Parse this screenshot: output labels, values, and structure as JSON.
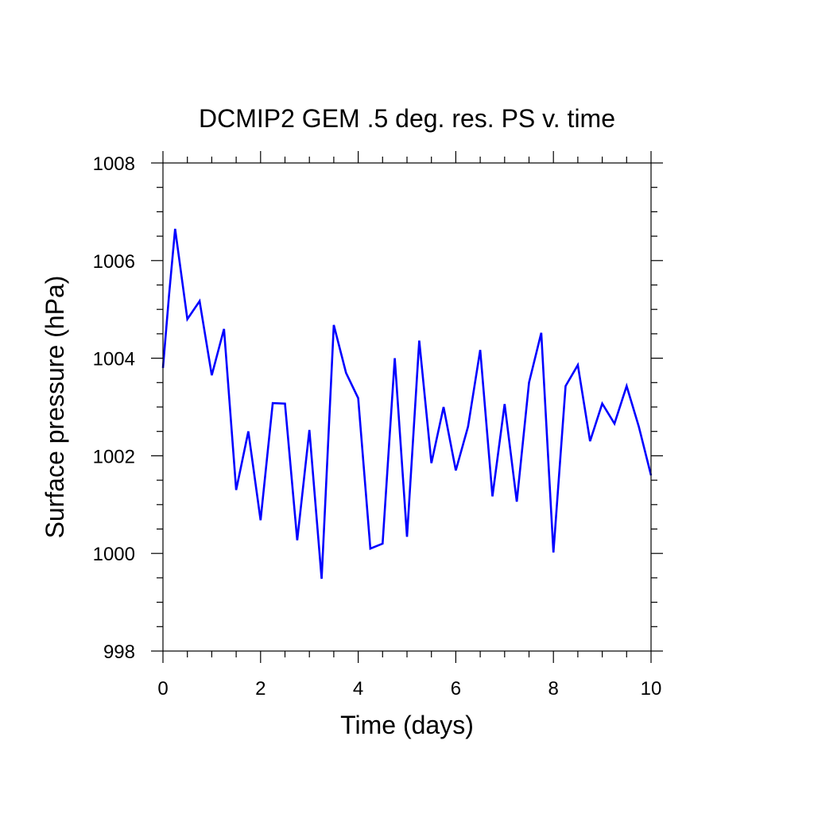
{
  "chart_data": {
    "type": "line",
    "title": "DCMIP2 GEM .5 deg. res. PS v. time",
    "xlabel": "Time (days)",
    "ylabel": "Surface pressure (hPa)",
    "xlim": [
      0,
      10
    ],
    "ylim": [
      998,
      1008
    ],
    "xticks": [
      0,
      2,
      4,
      6,
      8,
      10
    ],
    "xtick_labels": [
      "0",
      "2",
      "4",
      "6",
      "8",
      "10"
    ],
    "yticks": [
      998,
      1000,
      1002,
      1004,
      1006,
      1008
    ],
    "ytick_labels": [
      "998",
      "1000",
      "1002",
      "1004",
      "1006",
      "1008"
    ],
    "grid": false,
    "series": [
      {
        "color": "#0000ff",
        "x": [
          0,
          0.125,
          0.25,
          0.5,
          0.75,
          1.0,
          1.25,
          1.5,
          1.75,
          2.0,
          2.25,
          2.5,
          2.75,
          3.0,
          3.25,
          3.5,
          3.75,
          4.0,
          4.25,
          4.5,
          4.75,
          5.0,
          5.25,
          5.5,
          5.75,
          6.0,
          6.25,
          6.5,
          6.75,
          7.0,
          7.25,
          7.5,
          7.75,
          8.0,
          8.25,
          8.5,
          8.75,
          9.0,
          9.25,
          9.5,
          9.75,
          10.0
        ],
        "y": [
          1003.8,
          1005.3,
          1006.65,
          1004.8,
          1005.17,
          1003.65,
          1004.6,
          1001.3,
          1002.5,
          1000.68,
          1003.08,
          1003.07,
          1000.27,
          1002.53,
          999.48,
          1004.68,
          1003.7,
          1003.18,
          1000.1,
          1000.2,
          1004.0,
          1000.34,
          1004.36,
          1001.85,
          1003.0,
          1001.7,
          1002.6,
          1004.17,
          1001.17,
          1003.06,
          1001.06,
          1003.5,
          1004.52,
          1000.02,
          1003.43,
          1003.86,
          1002.3,
          1003.07,
          1002.66,
          1003.43,
          1002.6,
          1001.6
        ]
      }
    ]
  }
}
